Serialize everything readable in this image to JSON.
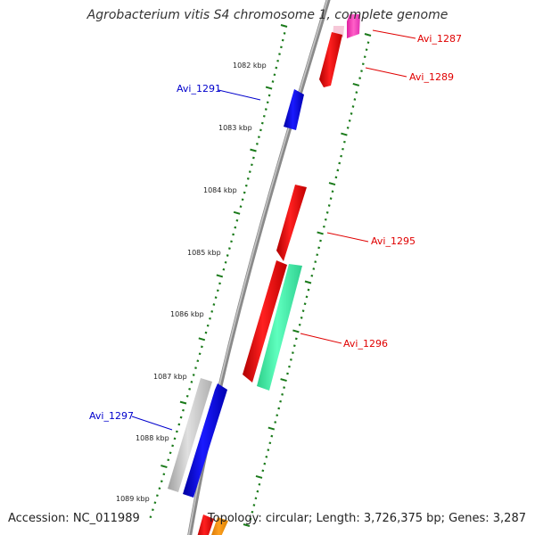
{
  "title": "Agrobacterium vitis S4 chromosome 1, complete genome",
  "footer": {
    "accession": "Accession: NC_011989",
    "topology": "Topology: circular; Length: 3,726,375 bp; Genes: 3,287"
  },
  "colors": {
    "forward_label": "#e00000",
    "reverse_label": "#0000cc",
    "tick": "#1a7a1a",
    "backbone": "#888888"
  },
  "scale_labels": [
    "1082 kbp",
    "1083 kbp",
    "1084 kbp",
    "1085 kbp",
    "1086 kbp",
    "1087 kbp",
    "1088 kbp",
    "1089 kbp"
  ],
  "gene_labels": {
    "avi_1287": "Avi_1287",
    "avi_1289": "Avi_1289",
    "avi_1291": "Avi_1291",
    "avi_1295": "Avi_1295",
    "avi_1296": "Avi_1296",
    "avi_1297": "Avi_1297"
  }
}
